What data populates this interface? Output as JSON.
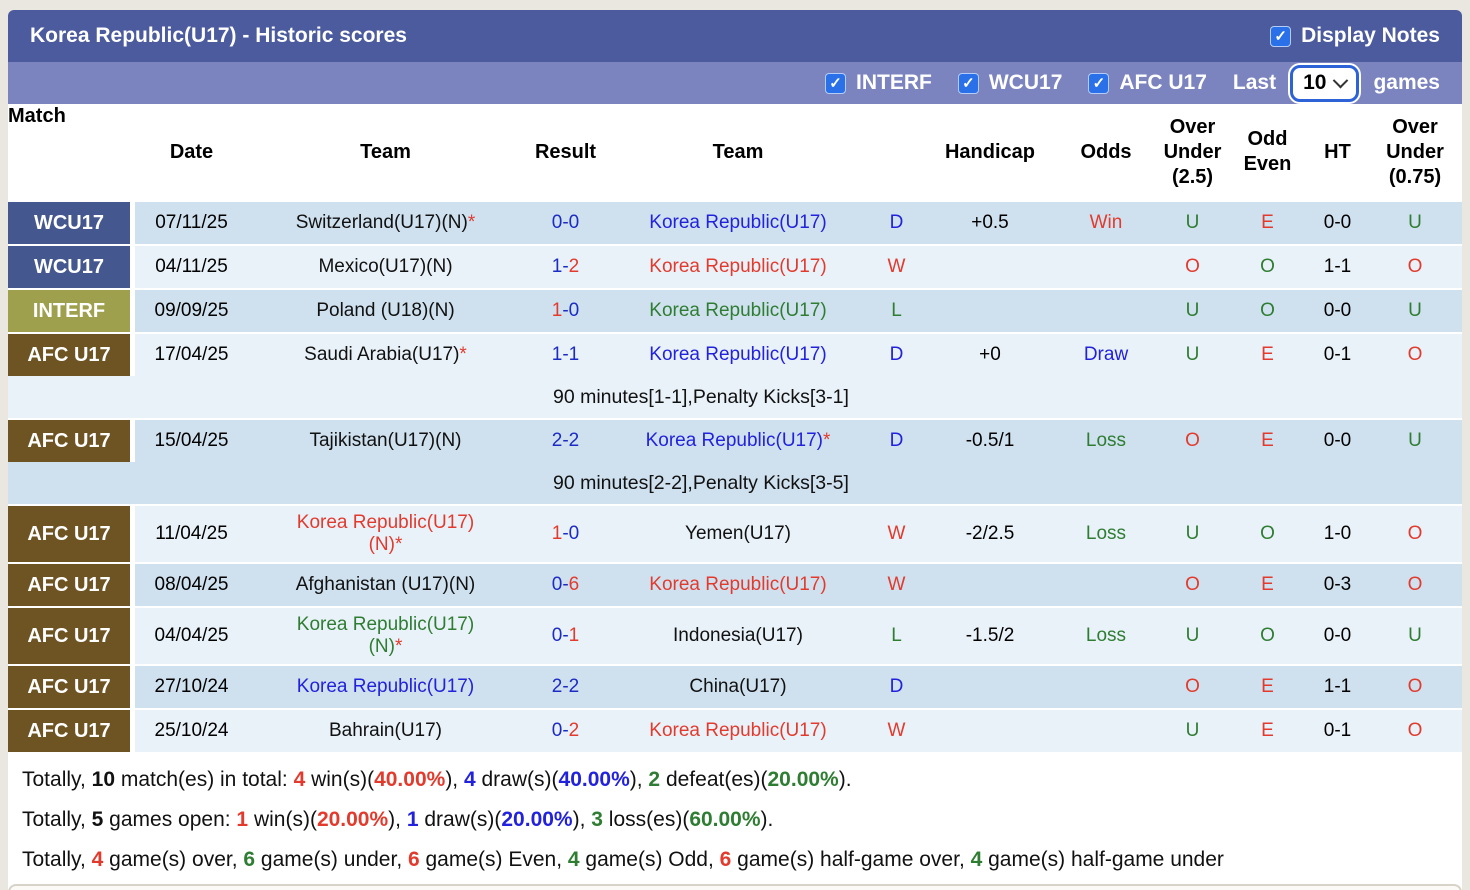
{
  "header": {
    "title": "Korea Republic(U17) - Historic scores",
    "display_notes_label": "Display Notes",
    "filters": [
      {
        "label": "INTERF",
        "checked": true
      },
      {
        "label": "WCU17",
        "checked": true
      },
      {
        "label": "AFC U17",
        "checked": true
      }
    ],
    "last_label": "Last",
    "games_count": "10",
    "games_label": "games"
  },
  "icons": {
    "check": "✓"
  },
  "colors": {
    "bar_dark": "#4c5b9d",
    "bar_light": "#7b84bf",
    "checkbox_blue": "#2a70e8",
    "wcu17_badge": "#44578e",
    "interf_badge": "#9fa04d",
    "afc_badge": "#6e5323",
    "row_dark": "#cfe1ef",
    "row_light": "#e9f2f9",
    "text_blue": "#2222dd",
    "text_red": "#e23b2e",
    "text_green": "#2f7d32",
    "score_blue": "#1c2bc4"
  },
  "columns": {
    "match": "Match",
    "date": "Date",
    "team1": "Team",
    "result": "Result",
    "team2": "Team",
    "dwl": "",
    "handicap": "Handicap",
    "odds": "Odds",
    "ou25": "Over\nUnder\n(2.5)",
    "oddeven": "Odd\nEven",
    "ht": "HT",
    "ou075": "Over\nUnder\n(0.75)"
  },
  "rows": [
    {
      "league": "WCU17",
      "league_class": "wcu",
      "shade": "dark",
      "date": "07/11/25",
      "team1": {
        "text": "Switzerland(U17)(N)",
        "star": "*",
        "color": "c-black"
      },
      "result": {
        "home": "0",
        "away": "0",
        "home_color": "s-blue",
        "away_color": "s-blue"
      },
      "team2": {
        "text": "Korea Republic(U17)",
        "star": "",
        "color": "c-blue"
      },
      "dwl": {
        "text": "D",
        "color": "c-blue"
      },
      "handicap": "+0.5",
      "odds": {
        "text": "Win",
        "color": "c-red"
      },
      "ou25": {
        "text": "U",
        "color": "c-green"
      },
      "oe": {
        "text": "E",
        "color": "c-red"
      },
      "ht": "0-0",
      "ou075": {
        "text": "U",
        "color": "c-green"
      },
      "note": ""
    },
    {
      "league": "WCU17",
      "league_class": "wcu",
      "shade": "light",
      "date": "04/11/25",
      "team1": {
        "text": "Mexico(U17)(N)",
        "star": "",
        "color": "c-black"
      },
      "result": {
        "home": "1",
        "away": "2",
        "home_color": "s-blue",
        "away_color": "s-red"
      },
      "team2": {
        "text": "Korea Republic(U17)",
        "star": "",
        "color": "c-red"
      },
      "dwl": {
        "text": "W",
        "color": "c-red"
      },
      "handicap": "",
      "odds": {
        "text": "",
        "color": ""
      },
      "ou25": {
        "text": "O",
        "color": "c-red"
      },
      "oe": {
        "text": "O",
        "color": "c-green"
      },
      "ht": "1-1",
      "ou075": {
        "text": "O",
        "color": "c-red"
      },
      "note": ""
    },
    {
      "league": "INTERF",
      "league_class": "interf",
      "shade": "dark",
      "date": "09/09/25",
      "team1": {
        "text": "Poland (U18)(N)",
        "star": "",
        "color": "c-black"
      },
      "result": {
        "home": "1",
        "away": "0",
        "home_color": "s-red",
        "away_color": "s-blue"
      },
      "team2": {
        "text": "Korea Republic(U17)",
        "star": "",
        "color": "c-green"
      },
      "dwl": {
        "text": "L",
        "color": "c-green"
      },
      "handicap": "",
      "odds": {
        "text": "",
        "color": ""
      },
      "ou25": {
        "text": "U",
        "color": "c-green"
      },
      "oe": {
        "text": "O",
        "color": "c-green"
      },
      "ht": "0-0",
      "ou075": {
        "text": "U",
        "color": "c-green"
      },
      "note": ""
    },
    {
      "league": "AFC U17",
      "league_class": "afc",
      "shade": "light",
      "date": "17/04/25",
      "team1": {
        "text": "Saudi Arabia(U17)",
        "star": "*",
        "color": "c-black"
      },
      "result": {
        "home": "1",
        "away": "1",
        "home_color": "s-blue",
        "away_color": "s-blue"
      },
      "team2": {
        "text": "Korea Republic(U17)",
        "star": "",
        "color": "c-blue"
      },
      "dwl": {
        "text": "D",
        "color": "c-blue"
      },
      "handicap": "+0",
      "odds": {
        "text": "Draw",
        "color": "c-blue"
      },
      "ou25": {
        "text": "U",
        "color": "c-green"
      },
      "oe": {
        "text": "E",
        "color": "c-red"
      },
      "ht": "0-1",
      "ou075": {
        "text": "O",
        "color": "c-red"
      },
      "note": "90 minutes[1-1],Penalty Kicks[3-1]"
    },
    {
      "league": "AFC U17",
      "league_class": "afc",
      "shade": "dark",
      "date": "15/04/25",
      "team1": {
        "text": "Tajikistan(U17)(N)",
        "star": "",
        "color": "c-black"
      },
      "result": {
        "home": "2",
        "away": "2",
        "home_color": "s-blue",
        "away_color": "s-blue"
      },
      "team2": {
        "text": "Korea Republic(U17)",
        "star": "*",
        "color": "c-blue"
      },
      "dwl": {
        "text": "D",
        "color": "c-blue"
      },
      "handicap": "-0.5/1",
      "odds": {
        "text": "Loss",
        "color": "c-green"
      },
      "ou25": {
        "text": "O",
        "color": "c-red"
      },
      "oe": {
        "text": "E",
        "color": "c-red"
      },
      "ht": "0-0",
      "ou075": {
        "text": "U",
        "color": "c-green"
      },
      "note": "90 minutes[2-2],Penalty Kicks[3-5]"
    },
    {
      "league": "AFC U17",
      "league_class": "afc",
      "shade": "light tall",
      "date": "11/04/25",
      "team1": {
        "text": "Korea Republic(U17)\n(N)",
        "star": "*",
        "color": "c-red"
      },
      "result": {
        "home": "1",
        "away": "0",
        "home_color": "s-red",
        "away_color": "s-blue"
      },
      "team2": {
        "text": "Yemen(U17)",
        "star": "",
        "color": "c-black"
      },
      "dwl": {
        "text": "W",
        "color": "c-red"
      },
      "handicap": "-2/2.5",
      "odds": {
        "text": "Loss",
        "color": "c-green"
      },
      "ou25": {
        "text": "U",
        "color": "c-green"
      },
      "oe": {
        "text": "O",
        "color": "c-green"
      },
      "ht": "1-0",
      "ou075": {
        "text": "O",
        "color": "c-red"
      },
      "note": ""
    },
    {
      "league": "AFC U17",
      "league_class": "afc",
      "shade": "dark",
      "date": "08/04/25",
      "team1": {
        "text": "Afghanistan (U17)(N)",
        "star": "",
        "color": "c-black"
      },
      "result": {
        "home": "0",
        "away": "6",
        "home_color": "s-blue",
        "away_color": "s-red"
      },
      "team2": {
        "text": "Korea Republic(U17)",
        "star": "",
        "color": "c-red"
      },
      "dwl": {
        "text": "W",
        "color": "c-red"
      },
      "handicap": "",
      "odds": {
        "text": "",
        "color": ""
      },
      "ou25": {
        "text": "O",
        "color": "c-red"
      },
      "oe": {
        "text": "E",
        "color": "c-red"
      },
      "ht": "0-3",
      "ou075": {
        "text": "O",
        "color": "c-red"
      },
      "note": ""
    },
    {
      "league": "AFC U17",
      "league_class": "afc",
      "shade": "light tall",
      "date": "04/04/25",
      "team1": {
        "text": "Korea Republic(U17)\n(N)",
        "star": "*",
        "color": "c-green"
      },
      "result": {
        "home": "0",
        "away": "1",
        "home_color": "s-blue",
        "away_color": "s-red"
      },
      "team2": {
        "text": "Indonesia(U17)",
        "star": "",
        "color": "c-black"
      },
      "dwl": {
        "text": "L",
        "color": "c-green"
      },
      "handicap": "-1.5/2",
      "odds": {
        "text": "Loss",
        "color": "c-green"
      },
      "ou25": {
        "text": "U",
        "color": "c-green"
      },
      "oe": {
        "text": "O",
        "color": "c-green"
      },
      "ht": "0-0",
      "ou075": {
        "text": "U",
        "color": "c-green"
      },
      "note": ""
    },
    {
      "league": "AFC U17",
      "league_class": "afc",
      "shade": "dark",
      "date": "27/10/24",
      "team1": {
        "text": "Korea Republic(U17)",
        "star": "",
        "color": "c-blue"
      },
      "result": {
        "home": "2",
        "away": "2",
        "home_color": "s-blue",
        "away_color": "s-blue"
      },
      "team2": {
        "text": "China(U17)",
        "star": "",
        "color": "c-black"
      },
      "dwl": {
        "text": "D",
        "color": "c-blue"
      },
      "handicap": "",
      "odds": {
        "text": "",
        "color": ""
      },
      "ou25": {
        "text": "O",
        "color": "c-red"
      },
      "oe": {
        "text": "E",
        "color": "c-red"
      },
      "ht": "1-1",
      "ou075": {
        "text": "O",
        "color": "c-red"
      },
      "note": ""
    },
    {
      "league": "AFC U17",
      "league_class": "afc",
      "shade": "light",
      "date": "25/10/24",
      "team1": {
        "text": "Bahrain(U17)",
        "star": "",
        "color": "c-black"
      },
      "result": {
        "home": "0",
        "away": "2",
        "home_color": "s-blue",
        "away_color": "s-red"
      },
      "team2": {
        "text": "Korea Republic(U17)",
        "star": "",
        "color": "c-red"
      },
      "dwl": {
        "text": "W",
        "color": "c-red"
      },
      "handicap": "",
      "odds": {
        "text": "",
        "color": ""
      },
      "ou25": {
        "text": "U",
        "color": "c-green"
      },
      "oe": {
        "text": "E",
        "color": "c-red"
      },
      "ht": "0-1",
      "ou075": {
        "text": "O",
        "color": "c-red"
      },
      "note": ""
    }
  ],
  "summary": {
    "line1": [
      {
        "t": "Totally, "
      },
      {
        "t": "10",
        "c": "b"
      },
      {
        "t": " match(es) in total: "
      },
      {
        "t": "4",
        "c": "b c-red"
      },
      {
        "t": " win(s)("
      },
      {
        "t": "40.00%",
        "c": "b c-red"
      },
      {
        "t": "), "
      },
      {
        "t": "4",
        "c": "b c-blue"
      },
      {
        "t": " draw(s)("
      },
      {
        "t": "40.00%",
        "c": "b c-blue"
      },
      {
        "t": "), "
      },
      {
        "t": "2",
        "c": "b c-green"
      },
      {
        "t": " defeat(es)("
      },
      {
        "t": "20.00%",
        "c": "b c-green"
      },
      {
        "t": ")."
      }
    ],
    "line2": [
      {
        "t": "Totally, "
      },
      {
        "t": "5",
        "c": "b"
      },
      {
        "t": " games open: "
      },
      {
        "t": "1",
        "c": "b c-red"
      },
      {
        "t": " win(s)("
      },
      {
        "t": "20.00%",
        "c": "b c-red"
      },
      {
        "t": "), "
      },
      {
        "t": "1",
        "c": "b c-blue"
      },
      {
        "t": " draw(s)("
      },
      {
        "t": "20.00%",
        "c": "b c-blue"
      },
      {
        "t": "), "
      },
      {
        "t": "3",
        "c": "b c-green"
      },
      {
        "t": " loss(es)("
      },
      {
        "t": "60.00%",
        "c": "b c-green"
      },
      {
        "t": ")."
      }
    ],
    "line3": [
      {
        "t": "Totally, "
      },
      {
        "t": "4",
        "c": "b c-red"
      },
      {
        "t": " game(s) over, "
      },
      {
        "t": "6",
        "c": "b c-green"
      },
      {
        "t": " game(s) under, "
      },
      {
        "t": "6",
        "c": "b c-red"
      },
      {
        "t": " game(s) Even, "
      },
      {
        "t": "4",
        "c": "b c-green"
      },
      {
        "t": " game(s) Odd, "
      },
      {
        "t": "6",
        "c": "b c-red"
      },
      {
        "t": " game(s) half-game over, "
      },
      {
        "t": "4",
        "c": "b c-green"
      },
      {
        "t": " game(s) half-game under"
      }
    ]
  }
}
